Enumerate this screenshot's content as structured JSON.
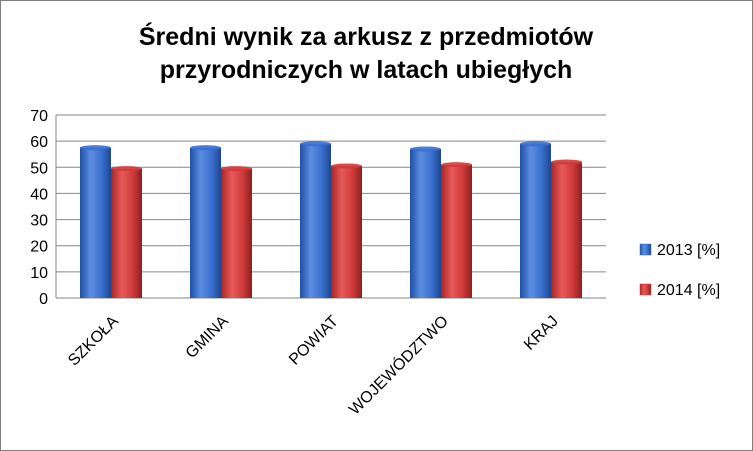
{
  "chart_data": {
    "type": "bar",
    "title_lines": [
      "Średni wynik za arkusz z przedmiotów",
      "przyrodniczych w latach ubiegłych"
    ],
    "categories": [
      "SZKOŁA",
      "GMINA",
      "POWIAT",
      "WOJEWÓDZTWO",
      "KRAJ"
    ],
    "series": [
      {
        "name": "2013 [%]",
        "values": [
          57.5,
          57.5,
          59,
          57,
          59
        ],
        "color": "#3a6fcf"
      },
      {
        "name": "2014 [%]",
        "values": [
          49.5,
          49.5,
          50.5,
          51,
          52
        ],
        "color": "#d03a3a"
      }
    ],
    "ylim": [
      0,
      70
    ],
    "yticks": [
      0,
      10,
      20,
      30,
      40,
      50,
      60,
      70
    ],
    "grid": true,
    "legend_position": "right"
  }
}
